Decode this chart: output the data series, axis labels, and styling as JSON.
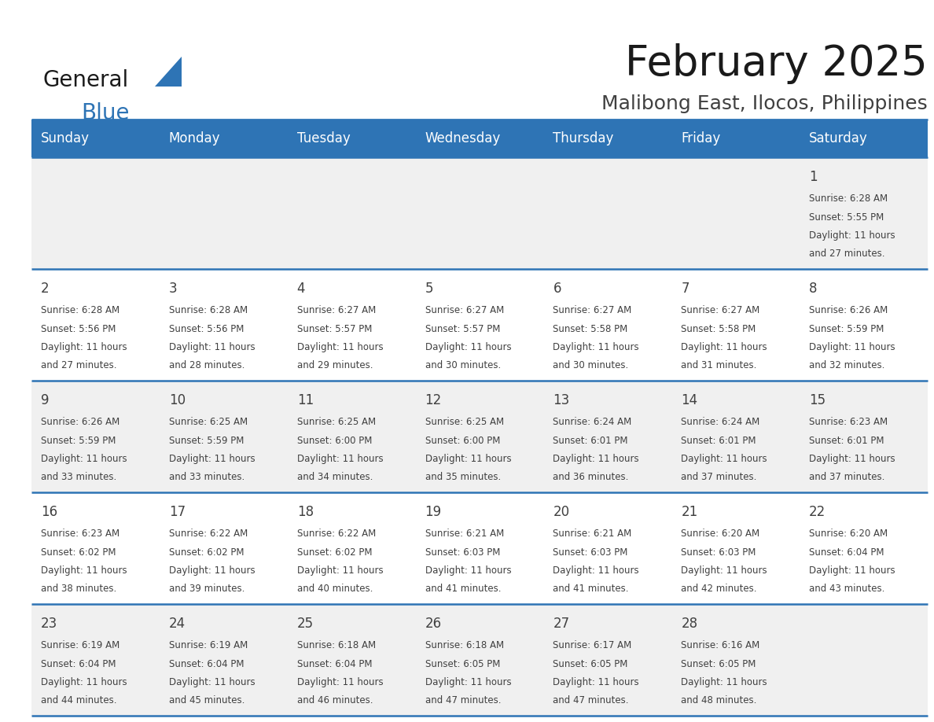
{
  "title": "February 2025",
  "subtitle": "Malibong East, Ilocos, Philippines",
  "header_color": "#2e74b5",
  "header_text_color": "#ffffff",
  "weekdays": [
    "Sunday",
    "Monday",
    "Tuesday",
    "Wednesday",
    "Thursday",
    "Friday",
    "Saturday"
  ],
  "bg_color": "#ffffff",
  "cell_bg_even": "#f0f0f0",
  "cell_bg_odd": "#ffffff",
  "separator_color": "#2e74b5",
  "day_text_color": "#404040",
  "info_text_color": "#404040",
  "title_color": "#1a1a1a",
  "subtitle_color": "#404040",
  "logo_general_color": "#1a1a1a",
  "logo_blue_color": "#2e74b5",
  "logo_triangle_color": "#2e74b5",
  "calendar_data": [
    {
      "day": 1,
      "col": 6,
      "row": 0,
      "sunrise": "6:28 AM",
      "sunset": "5:55 PM",
      "daylight": "11 hours and 27 minutes"
    },
    {
      "day": 2,
      "col": 0,
      "row": 1,
      "sunrise": "6:28 AM",
      "sunset": "5:56 PM",
      "daylight": "11 hours and 27 minutes"
    },
    {
      "day": 3,
      "col": 1,
      "row": 1,
      "sunrise": "6:28 AM",
      "sunset": "5:56 PM",
      "daylight": "11 hours and 28 minutes"
    },
    {
      "day": 4,
      "col": 2,
      "row": 1,
      "sunrise": "6:27 AM",
      "sunset": "5:57 PM",
      "daylight": "11 hours and 29 minutes"
    },
    {
      "day": 5,
      "col": 3,
      "row": 1,
      "sunrise": "6:27 AM",
      "sunset": "5:57 PM",
      "daylight": "11 hours and 30 minutes"
    },
    {
      "day": 6,
      "col": 4,
      "row": 1,
      "sunrise": "6:27 AM",
      "sunset": "5:58 PM",
      "daylight": "11 hours and 30 minutes"
    },
    {
      "day": 7,
      "col": 5,
      "row": 1,
      "sunrise": "6:27 AM",
      "sunset": "5:58 PM",
      "daylight": "11 hours and 31 minutes"
    },
    {
      "day": 8,
      "col": 6,
      "row": 1,
      "sunrise": "6:26 AM",
      "sunset": "5:59 PM",
      "daylight": "11 hours and 32 minutes"
    },
    {
      "day": 9,
      "col": 0,
      "row": 2,
      "sunrise": "6:26 AM",
      "sunset": "5:59 PM",
      "daylight": "11 hours and 33 minutes"
    },
    {
      "day": 10,
      "col": 1,
      "row": 2,
      "sunrise": "6:25 AM",
      "sunset": "5:59 PM",
      "daylight": "11 hours and 33 minutes"
    },
    {
      "day": 11,
      "col": 2,
      "row": 2,
      "sunrise": "6:25 AM",
      "sunset": "6:00 PM",
      "daylight": "11 hours and 34 minutes"
    },
    {
      "day": 12,
      "col": 3,
      "row": 2,
      "sunrise": "6:25 AM",
      "sunset": "6:00 PM",
      "daylight": "11 hours and 35 minutes"
    },
    {
      "day": 13,
      "col": 4,
      "row": 2,
      "sunrise": "6:24 AM",
      "sunset": "6:01 PM",
      "daylight": "11 hours and 36 minutes"
    },
    {
      "day": 14,
      "col": 5,
      "row": 2,
      "sunrise": "6:24 AM",
      "sunset": "6:01 PM",
      "daylight": "11 hours and 37 minutes"
    },
    {
      "day": 15,
      "col": 6,
      "row": 2,
      "sunrise": "6:23 AM",
      "sunset": "6:01 PM",
      "daylight": "11 hours and 37 minutes"
    },
    {
      "day": 16,
      "col": 0,
      "row": 3,
      "sunrise": "6:23 AM",
      "sunset": "6:02 PM",
      "daylight": "11 hours and 38 minutes"
    },
    {
      "day": 17,
      "col": 1,
      "row": 3,
      "sunrise": "6:22 AM",
      "sunset": "6:02 PM",
      "daylight": "11 hours and 39 minutes"
    },
    {
      "day": 18,
      "col": 2,
      "row": 3,
      "sunrise": "6:22 AM",
      "sunset": "6:02 PM",
      "daylight": "11 hours and 40 minutes"
    },
    {
      "day": 19,
      "col": 3,
      "row": 3,
      "sunrise": "6:21 AM",
      "sunset": "6:03 PM",
      "daylight": "11 hours and 41 minutes"
    },
    {
      "day": 20,
      "col": 4,
      "row": 3,
      "sunrise": "6:21 AM",
      "sunset": "6:03 PM",
      "daylight": "11 hours and 41 minutes"
    },
    {
      "day": 21,
      "col": 5,
      "row": 3,
      "sunrise": "6:20 AM",
      "sunset": "6:03 PM",
      "daylight": "11 hours and 42 minutes"
    },
    {
      "day": 22,
      "col": 6,
      "row": 3,
      "sunrise": "6:20 AM",
      "sunset": "6:04 PM",
      "daylight": "11 hours and 43 minutes"
    },
    {
      "day": 23,
      "col": 0,
      "row": 4,
      "sunrise": "6:19 AM",
      "sunset": "6:04 PM",
      "daylight": "11 hours and 44 minutes"
    },
    {
      "day": 24,
      "col": 1,
      "row": 4,
      "sunrise": "6:19 AM",
      "sunset": "6:04 PM",
      "daylight": "11 hours and 45 minutes"
    },
    {
      "day": 25,
      "col": 2,
      "row": 4,
      "sunrise": "6:18 AM",
      "sunset": "6:04 PM",
      "daylight": "11 hours and 46 minutes"
    },
    {
      "day": 26,
      "col": 3,
      "row": 4,
      "sunrise": "6:18 AM",
      "sunset": "6:05 PM",
      "daylight": "11 hours and 47 minutes"
    },
    {
      "day": 27,
      "col": 4,
      "row": 4,
      "sunrise": "6:17 AM",
      "sunset": "6:05 PM",
      "daylight": "11 hours and 47 minutes"
    },
    {
      "day": 28,
      "col": 5,
      "row": 4,
      "sunrise": "6:16 AM",
      "sunset": "6:05 PM",
      "daylight": "11 hours and 48 minutes"
    }
  ]
}
